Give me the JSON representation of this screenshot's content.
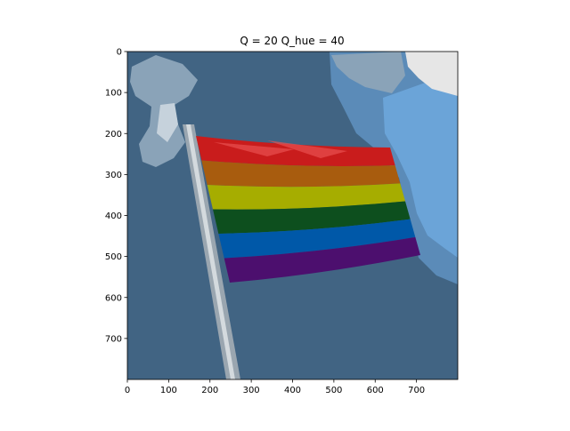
{
  "chart_data": {
    "type": "image",
    "title": "Q = 20 Q_hue = 40",
    "xlim": [
      0,
      800
    ],
    "ylim": [
      800,
      0
    ],
    "xticks": [
      "0",
      "100",
      "200",
      "300",
      "400",
      "500",
      "600",
      "700"
    ],
    "yticks": [
      "0",
      "100",
      "200",
      "300",
      "400",
      "500",
      "600",
      "700"
    ],
    "xtick_values": [
      0,
      100,
      200,
      300,
      400,
      500,
      600,
      700
    ],
    "ytick_values": [
      0,
      100,
      200,
      300,
      400,
      500,
      600,
      700
    ],
    "grid": false,
    "image_content": {
      "subject": "rainbow-flag",
      "stripe_colors": [
        "#c91c1c",
        "#a85c0e",
        "#a6ad00",
        "#0d4f1e",
        "#0058a8",
        "#4c0f6e"
      ],
      "background_colors": [
        "#416483",
        "#6ba4d8",
        "#5b8bb8",
        "#8aa3b8",
        "#e6e6e6"
      ],
      "pole_color": "#b4bcc2"
    }
  }
}
